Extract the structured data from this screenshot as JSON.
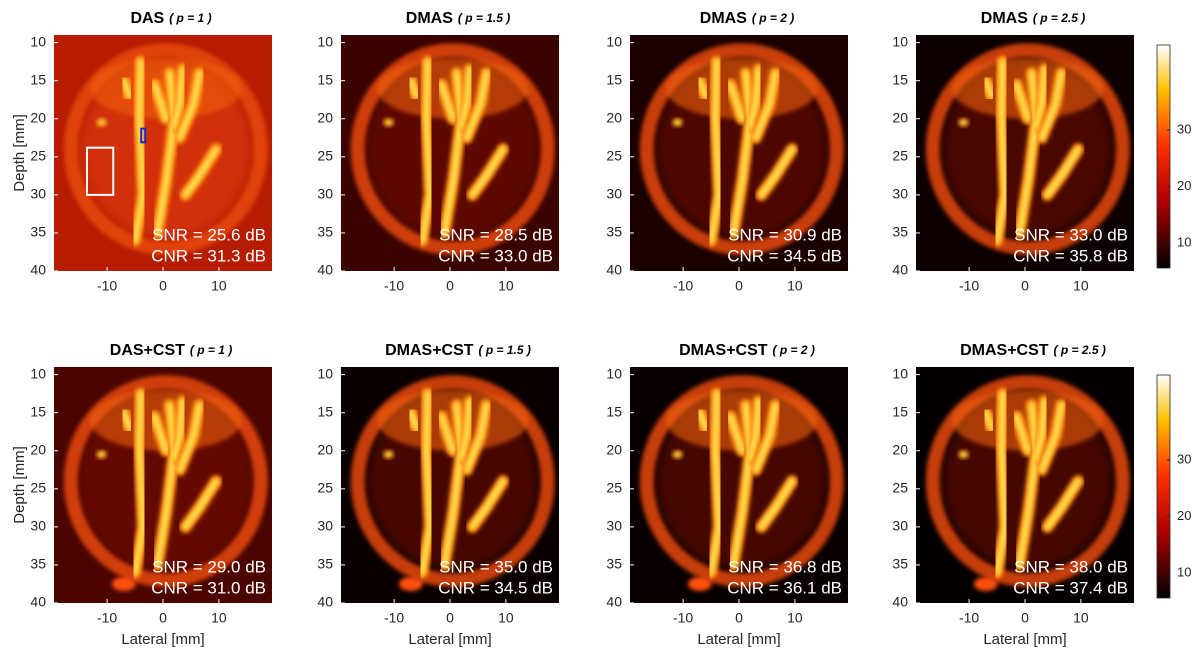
{
  "chart_data": [
    {
      "type": "image",
      "title": "DAS",
      "subtitle": "( p = 1 )",
      "ylabel": "Depth [mm]",
      "xlim": [
        -19.5,
        19.5
      ],
      "ylim": [
        9,
        40
      ],
      "xticks": [
        -10,
        0,
        10
      ],
      "yticks": [
        10,
        15,
        20,
        25,
        30,
        35,
        40
      ],
      "annotations": [
        "SNR = 25.6 dB",
        "CNR = 31.3 dB"
      ]
    },
    {
      "type": "image",
      "title": "DMAS",
      "subtitle": "( p = 1.5 )",
      "xlim": [
        -19.5,
        19.5
      ],
      "ylim": [
        9,
        40
      ],
      "xticks": [
        -10,
        0,
        10
      ],
      "yticks": [
        10,
        15,
        20,
        25,
        30,
        35,
        40
      ],
      "annotations": [
        "SNR = 28.5 dB",
        "CNR = 33.0 dB"
      ]
    },
    {
      "type": "image",
      "title": "DMAS",
      "subtitle": "( p = 2 )",
      "xlim": [
        -19.5,
        19.5
      ],
      "ylim": [
        9,
        40
      ],
      "xticks": [
        -10,
        0,
        10
      ],
      "yticks": [
        10,
        15,
        20,
        25,
        30,
        35,
        40
      ],
      "annotations": [
        "SNR = 30.9 dB",
        "CNR = 34.5 dB"
      ]
    },
    {
      "type": "image",
      "title": "DMAS",
      "subtitle": "( p = 2.5 )",
      "xlim": [
        -19.5,
        19.5
      ],
      "ylim": [
        9,
        40
      ],
      "xticks": [
        -10,
        0,
        10
      ],
      "yticks": [
        10,
        15,
        20,
        25,
        30,
        35,
        40
      ],
      "annotations": [
        "SNR = 33.0 dB",
        "CNR = 35.8 dB"
      ]
    },
    {
      "type": "image",
      "title": "DAS+CST",
      "subtitle": "( p = 1 )",
      "ylabel": "Depth [mm]",
      "xlabel": "Lateral [mm]",
      "xlim": [
        -19.5,
        19.5
      ],
      "ylim": [
        9,
        40
      ],
      "xticks": [
        -10,
        0,
        10
      ],
      "yticks": [
        10,
        15,
        20,
        25,
        30,
        35,
        40
      ],
      "annotations": [
        "SNR = 29.0 dB",
        "CNR = 31.0 dB"
      ]
    },
    {
      "type": "image",
      "title": "DMAS+CST",
      "subtitle": "( p = 1.5 )",
      "xlabel": "Lateral [mm]",
      "xlim": [
        -19.5,
        19.5
      ],
      "ylim": [
        9,
        40
      ],
      "xticks": [
        -10,
        0,
        10
      ],
      "yticks": [
        10,
        15,
        20,
        25,
        30,
        35,
        40
      ],
      "annotations": [
        "SNR = 35.0 dB",
        "CNR = 34.5 dB"
      ]
    },
    {
      "type": "image",
      "title": "DMAS+CST",
      "subtitle": "( p = 2 )",
      "xlabel": "Lateral [mm]",
      "xlim": [
        -19.5,
        19.5
      ],
      "ylim": [
        9,
        40
      ],
      "xticks": [
        -10,
        0,
        10
      ],
      "yticks": [
        10,
        15,
        20,
        25,
        30,
        35,
        40
      ],
      "annotations": [
        "SNR = 36.8 dB",
        "CNR = 36.1 dB"
      ]
    },
    {
      "type": "image",
      "title": "DMAS+CST",
      "subtitle": "( p = 2.5 )",
      "xlabel": "Lateral [mm]",
      "xlim": [
        -19.5,
        19.5
      ],
      "ylim": [
        9,
        40
      ],
      "xticks": [
        -10,
        0,
        10
      ],
      "yticks": [
        10,
        15,
        20,
        25,
        30,
        35,
        40
      ],
      "annotations": [
        "SNR = 38.0 dB",
        "CNR = 37.4 dB"
      ]
    },
    {
      "type": "colorbar",
      "clim": [
        5.6,
        45
      ],
      "ticks": [
        10,
        20,
        30
      ]
    },
    {
      "type": "colorbar",
      "clim": [
        5.6,
        45
      ],
      "ticks": [
        10,
        20,
        30
      ]
    }
  ]
}
